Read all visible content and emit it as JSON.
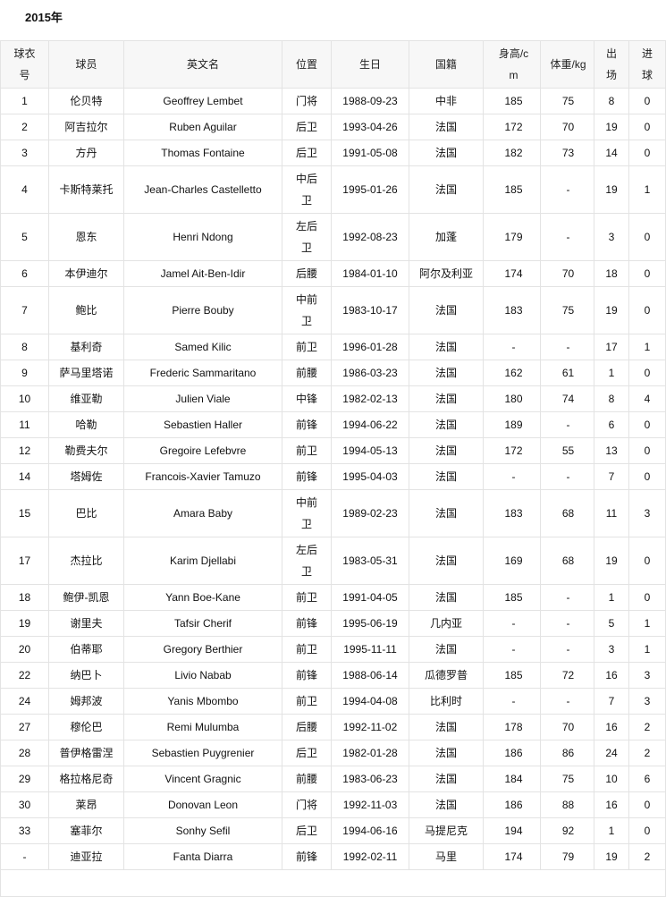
{
  "title": "2015年",
  "headers": [
    "球衣号",
    "球员",
    "英文名",
    "位置",
    "生日",
    "国籍",
    "身高/cm",
    "体重/kg",
    "出场",
    "进球"
  ],
  "rows": [
    [
      "1",
      "伦贝特",
      "Geoffrey Lembet",
      "门将",
      "1988-09-23",
      "中非",
      "185",
      "75",
      "8",
      "0"
    ],
    [
      "2",
      "阿吉拉尔",
      "Ruben Aguilar",
      "后卫",
      "1993-04-26",
      "法国",
      "172",
      "70",
      "19",
      "0"
    ],
    [
      "3",
      "方丹",
      "Thomas Fontaine",
      "后卫",
      "1991-05-08",
      "法国",
      "182",
      "73",
      "14",
      "0"
    ],
    [
      "4",
      "卡斯特莱托",
      "Jean-Charles Castelletto",
      "中后卫",
      "1995-01-26",
      "法国",
      "185",
      "-",
      "19",
      "1"
    ],
    [
      "5",
      "恩东",
      "Henri Ndong",
      "左后卫",
      "1992-08-23",
      "加蓬",
      "179",
      "-",
      "3",
      "0"
    ],
    [
      "6",
      "本伊迪尔",
      "Jamel Ait-Ben-Idir",
      "后腰",
      "1984-01-10",
      "阿尔及利亚",
      "174",
      "70",
      "18",
      "0"
    ],
    [
      "7",
      "鲍比",
      "Pierre Bouby",
      "中前卫",
      "1983-10-17",
      "法国",
      "183",
      "75",
      "19",
      "0"
    ],
    [
      "8",
      "基利奇",
      "Samed Kilic",
      "前卫",
      "1996-01-28",
      "法国",
      "-",
      "-",
      "17",
      "1"
    ],
    [
      "9",
      "萨马里塔诺",
      "Frederic Sammaritano",
      "前腰",
      "1986-03-23",
      "法国",
      "162",
      "61",
      "1",
      "0"
    ],
    [
      "10",
      "维亚勒",
      "Julien Viale",
      "中锋",
      "1982-02-13",
      "法国",
      "180",
      "74",
      "8",
      "4"
    ],
    [
      "11",
      "哈勒",
      "Sebastien Haller",
      "前锋",
      "1994-06-22",
      "法国",
      "189",
      "-",
      "6",
      "0"
    ],
    [
      "12",
      "勒费夫尔",
      "Gregoire Lefebvre",
      "前卫",
      "1994-05-13",
      "法国",
      "172",
      "55",
      "13",
      "0"
    ],
    [
      "14",
      "塔姆佐",
      "Francois-Xavier Tamuzo",
      "前锋",
      "1995-04-03",
      "法国",
      "-",
      "-",
      "7",
      "0"
    ],
    [
      "15",
      "巴比",
      "Amara Baby",
      "中前卫",
      "1989-02-23",
      "法国",
      "183",
      "68",
      "11",
      "3"
    ],
    [
      "17",
      "杰拉比",
      "Karim Djellabi",
      "左后卫",
      "1983-05-31",
      "法国",
      "169",
      "68",
      "19",
      "0"
    ],
    [
      "18",
      "鲍伊-凯恩",
      "Yann Boe-Kane",
      "前卫",
      "1991-04-05",
      "法国",
      "185",
      "-",
      "1",
      "0"
    ],
    [
      "19",
      "谢里夫",
      "Tafsir Cherif",
      "前锋",
      "1995-06-19",
      "几内亚",
      "-",
      "-",
      "5",
      "1"
    ],
    [
      "20",
      "伯蒂耶",
      "Gregory Berthier",
      "前卫",
      "1995-11-11",
      "法国",
      "-",
      "-",
      "3",
      "1"
    ],
    [
      "22",
      "纳巴卜",
      "Livio Nabab",
      "前锋",
      "1988-06-14",
      "瓜德罗普",
      "185",
      "72",
      "16",
      "3"
    ],
    [
      "24",
      "姆邦波",
      "Yanis Mbombo",
      "前卫",
      "1994-04-08",
      "比利时",
      "-",
      "-",
      "7",
      "3"
    ],
    [
      "27",
      "穆伦巴",
      "Remi Mulumba",
      "后腰",
      "1992-11-02",
      "法国",
      "178",
      "70",
      "16",
      "2"
    ],
    [
      "28",
      "普伊格雷涅",
      "Sebastien Puygrenier",
      "后卫",
      "1982-01-28",
      "法国",
      "186",
      "86",
      "24",
      "2"
    ],
    [
      "29",
      "格拉格尼奇",
      "Vincent Gragnic",
      "前腰",
      "1983-06-23",
      "法国",
      "184",
      "75",
      "10",
      "6"
    ],
    [
      "30",
      "莱昂",
      "Donovan Leon",
      "门将",
      "1992-11-03",
      "法国",
      "186",
      "88",
      "16",
      "0"
    ],
    [
      "33",
      "塞菲尔",
      "Sonhy Sefil",
      "后卫",
      "1994-06-16",
      "马提尼克",
      "194",
      "92",
      "1",
      "0"
    ],
    [
      "-",
      "迪亚拉",
      "Fanta Diarra",
      "前锋",
      "1992-02-11",
      "马里",
      "174",
      "79",
      "19",
      "2"
    ]
  ]
}
